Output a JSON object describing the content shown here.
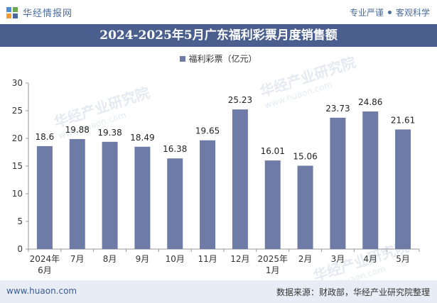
{
  "header": {
    "brand": "华经情报网",
    "tag1": "专业严谨",
    "tag2": "客观科学"
  },
  "title": "2024-2025年5月广东福利彩票月度销售额",
  "legend": "福利彩票（亿元）",
  "footer": {
    "website": "www.huaon.com",
    "source": "数据来源：财政部，华经产业研究院整理"
  },
  "watermark": {
    "text": "华经产业研究院",
    "url": "www.huaon.com"
  },
  "colors": {
    "bar": "#6e7ba6",
    "title_bg": "#4b5f8f",
    "footer_bg": "#e8edf5"
  },
  "chart_data": {
    "type": "bar",
    "title": "2024-2025年5月广东福利彩票月度销售额",
    "categories": [
      "2024年\n6月",
      "7月",
      "8月",
      "9月",
      "10月",
      "11月",
      "12月",
      "2025年\n1月",
      "2月",
      "3月",
      "4月",
      "5月"
    ],
    "series": [
      {
        "name": "福利彩票（亿元）",
        "values": [
          18.6,
          19.88,
          19.38,
          18.49,
          16.38,
          19.65,
          25.23,
          16.01,
          15.06,
          23.73,
          24.86,
          21.61
        ]
      }
    ],
    "value_labels": [
      "18.6",
      "19.88",
      "19.38",
      "18.49",
      "16.38",
      "19.65",
      "25.23",
      "16.01",
      "15.06",
      "23.73",
      "24.86",
      "21.61"
    ],
    "ylim": [
      0,
      30
    ],
    "yticks": [
      "0",
      "5",
      "10",
      "15",
      "20",
      "25",
      "30"
    ],
    "xlabel": "",
    "ylabel": "",
    "grid": false,
    "legend_position": "top-center"
  }
}
